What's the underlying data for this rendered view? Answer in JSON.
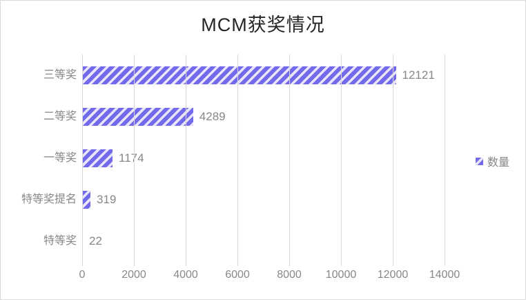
{
  "frame": {
    "background": "#ffffff",
    "border_color": "#d9d9d9"
  },
  "chart_data": {
    "type": "bar",
    "orientation": "horizontal",
    "title": "MCM获奖情况",
    "categories": [
      "三等奖",
      "二等奖",
      "一等奖",
      "特等奖提名",
      "特等奖"
    ],
    "values": [
      12121,
      4289,
      1174,
      319,
      22
    ],
    "value_labels": [
      "12121",
      "4289",
      "1174",
      "319",
      "22"
    ],
    "series_name": "数量",
    "xlim": [
      0,
      14000
    ],
    "xticks": [
      0,
      2000,
      4000,
      6000,
      8000,
      10000,
      12000,
      14000
    ],
    "xtick_labels": [
      "0",
      "2000",
      "4000",
      "6000",
      "8000",
      "10000",
      "12000",
      "14000"
    ],
    "grid": "vertical",
    "legend_position": "right-center",
    "bar_pattern": "light-diagonal-stripes",
    "colors": {
      "bar": "#7369eb",
      "bar_stripe": "#e8e6f8",
      "gridline": "#d9d9d9",
      "labels": "#878787",
      "title": "#262626",
      "frame_border": "#d9d9d9"
    }
  },
  "legend": {
    "label": "数量"
  }
}
